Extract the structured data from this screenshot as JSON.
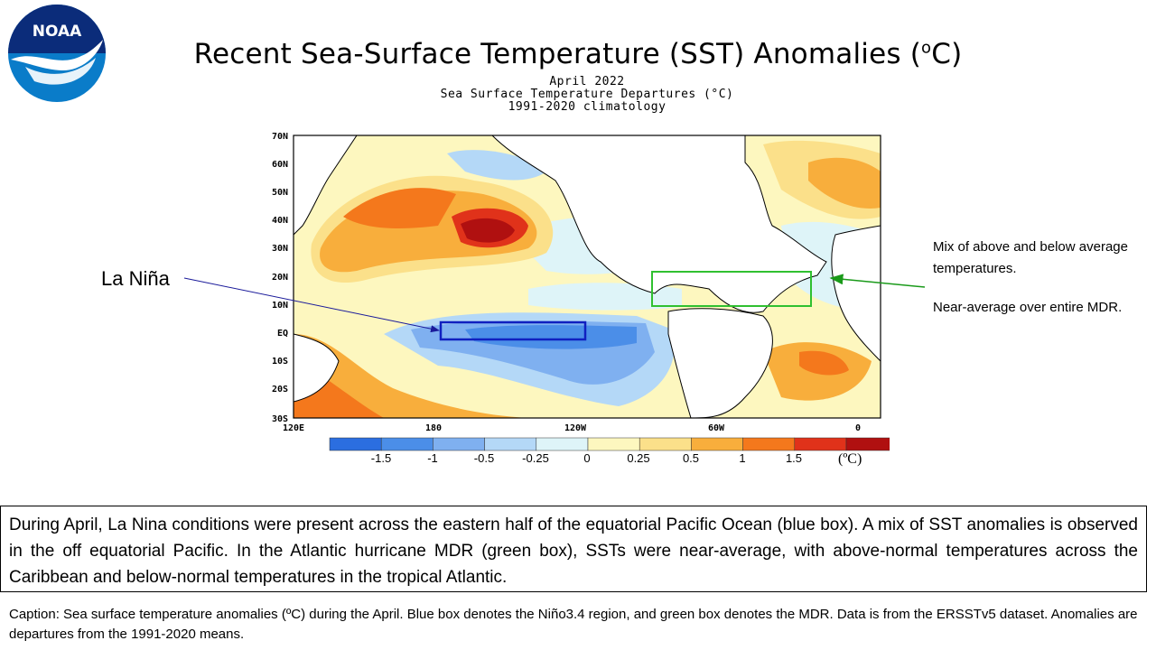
{
  "header": {
    "title": "Recent Sea-Surface Temperature (SST) Anomalies (",
    "title_sup": "o",
    "title_end": "C)",
    "logo_text": "NOAA"
  },
  "map": {
    "header_lines": [
      "April 2022",
      "Sea Surface Temperature Departures (°C)",
      "1991-2020 climatology"
    ],
    "lat_labels": [
      "70N",
      "60N",
      "50N",
      "40N",
      "30N",
      "20N",
      "10N",
      "EQ",
      "10S",
      "20S",
      "30S"
    ],
    "lon_labels": [
      "120E",
      "180",
      "120W",
      "60W",
      "0"
    ],
    "colorbar": {
      "colors": [
        "#2b6ee0",
        "#4b8ee8",
        "#7fb0f0",
        "#b4d8f7",
        "#def4f8",
        "#fdf7bf",
        "#fbe08a",
        "#f8ae3c",
        "#f4781c",
        "#e0321a",
        "#b01010"
      ],
      "tick_labels": [
        "-1.5",
        "-1",
        "-0.5",
        "-0.25",
        "0",
        "0.25",
        "0.5",
        "1",
        "1.5"
      ],
      "unit": "(ºC)"
    },
    "land_color": "#ffffff",
    "boxes": {
      "nino34_color": "#1020c0",
      "mdr_color": "#30c030"
    }
  },
  "annotations": {
    "la_nina": "La Niña",
    "atlantic_mix": "Mix of above and below average temperatures.",
    "mdr_note": "Near-average over entire MDR.",
    "arrow_blue": "#1a1a9a",
    "arrow_green": "#1a9a1a"
  },
  "summary": "During April, La Nina conditions were present across the eastern half of the equatorial Pacific Ocean (blue box). A mix of SST anomalies is observed in the off equatorial Pacific. In the Atlantic hurricane MDR (green box), SSTs were near-average, with above-normal temperatures across the Caribbean and below-normal temperatures in the tropical Atlantic.",
  "caption": "Caption: Sea surface temperature anomalies (ºC) during the April. Blue box denotes the Niño3.4 region, and green box denotes the MDR. Data is from the ERSSTv5 dataset. Anomalies are departures from the 1991-2020 means."
}
